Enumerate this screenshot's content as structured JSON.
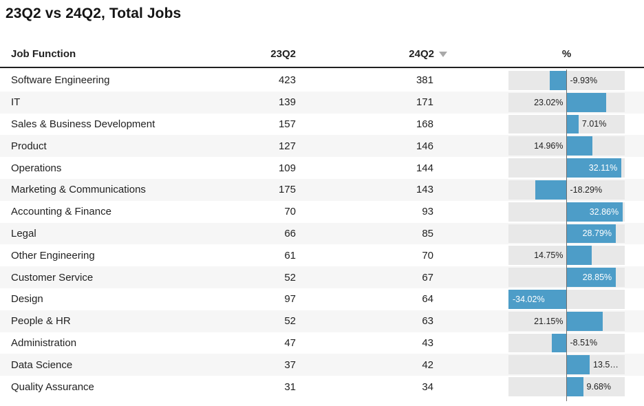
{
  "title": "23Q2 vs 24Q2, Total Jobs",
  "colors": {
    "bar": "#4d9dc8",
    "track": "#e8e8e8",
    "axis_line": "#6e6e6e",
    "header_underline": "#1f1f1f",
    "alt_row": "#f6f6f6",
    "inside_label": "#ffffff",
    "text": "#212121"
  },
  "table": {
    "columns": [
      "Job Function",
      "23Q2",
      "24Q2",
      "%"
    ],
    "sort": {
      "column": "24Q2",
      "direction": "desc",
      "icon": "triangle-down"
    },
    "rows": [
      {
        "function": "Software Engineering",
        "q23": 423,
        "q24": 381,
        "pct": -9.93,
        "pct_label": "-9.93%",
        "label_pos": "axis_right"
      },
      {
        "function": "IT",
        "q23": 139,
        "q24": 171,
        "pct": 23.02,
        "pct_label": "23.02%",
        "label_pos": "axis_left"
      },
      {
        "function": "Sales & Business Development",
        "q23": 157,
        "q24": 168,
        "pct": 7.01,
        "pct_label": "7.01%",
        "label_pos": "bar_right"
      },
      {
        "function": "Product",
        "q23": 127,
        "q24": 146,
        "pct": 14.96,
        "pct_label": "14.96%",
        "label_pos": "axis_left"
      },
      {
        "function": "Operations",
        "q23": 109,
        "q24": 144,
        "pct": 32.11,
        "pct_label": "32.11%",
        "label_pos": "inside_right"
      },
      {
        "function": "Marketing & Communications",
        "q23": 175,
        "q24": 143,
        "pct": -18.29,
        "pct_label": "-18.29%",
        "label_pos": "axis_right"
      },
      {
        "function": "Accounting & Finance",
        "q23": 70,
        "q24": 93,
        "pct": 32.86,
        "pct_label": "32.86%",
        "label_pos": "inside_right"
      },
      {
        "function": "Legal",
        "q23": 66,
        "q24": 85,
        "pct": 28.79,
        "pct_label": "28.79%",
        "label_pos": "inside_right"
      },
      {
        "function": "Other Engineering",
        "q23": 61,
        "q24": 70,
        "pct": 14.75,
        "pct_label": "14.75%",
        "label_pos": "axis_left"
      },
      {
        "function": "Customer Service",
        "q23": 52,
        "q24": 67,
        "pct": 28.85,
        "pct_label": "28.85%",
        "label_pos": "inside_right"
      },
      {
        "function": "Design",
        "q23": 97,
        "q24": 64,
        "pct": -34.02,
        "pct_label": "-34.02%",
        "label_pos": "inside_left"
      },
      {
        "function": "People & HR",
        "q23": 52,
        "q24": 63,
        "pct": 21.15,
        "pct_label": "21.15%",
        "label_pos": "axis_left"
      },
      {
        "function": "Administration",
        "q23": 47,
        "q24": 43,
        "pct": -8.51,
        "pct_label": "-8.51%",
        "label_pos": "axis_right"
      },
      {
        "function": "Data Science",
        "q23": 37,
        "q24": 42,
        "pct": 13.51,
        "pct_label": "13.5…",
        "label_pos": "bar_right"
      },
      {
        "function": "Quality Assurance",
        "q23": 31,
        "q24": 34,
        "pct": 9.68,
        "pct_label": "9.68%",
        "label_pos": "bar_right"
      }
    ]
  },
  "chart_data": {
    "type": "table",
    "title": "23Q2 vs 24Q2, Total Jobs",
    "columns": [
      "Job Function",
      "23Q2",
      "24Q2",
      "%"
    ],
    "categories": [
      "Software Engineering",
      "IT",
      "Sales & Business Development",
      "Product",
      "Operations",
      "Marketing & Communications",
      "Accounting & Finance",
      "Legal",
      "Other Engineering",
      "Customer Service",
      "Design",
      "People & HR",
      "Administration",
      "Data Science",
      "Quality Assurance"
    ],
    "series": [
      {
        "name": "23Q2",
        "values": [
          423,
          139,
          157,
          127,
          109,
          175,
          70,
          66,
          61,
          52,
          97,
          52,
          47,
          37,
          31
        ]
      },
      {
        "name": "24Q2",
        "values": [
          381,
          171,
          168,
          146,
          144,
          143,
          93,
          85,
          70,
          67,
          64,
          63,
          43,
          42,
          34
        ]
      },
      {
        "name": "% change",
        "values": [
          -9.93,
          23.02,
          7.01,
          14.96,
          32.11,
          -18.29,
          32.86,
          28.79,
          14.75,
          28.85,
          -34.02,
          21.15,
          -8.51,
          13.51,
          9.68
        ]
      }
    ],
    "bar_column": {
      "type": "bar",
      "orientation": "horizontal",
      "axis_range": [
        -34.02,
        34.02
      ],
      "zero_axis_line": true
    },
    "sort": {
      "column": "24Q2",
      "direction": "desc"
    },
    "legend_position": "none",
    "grid": false
  }
}
